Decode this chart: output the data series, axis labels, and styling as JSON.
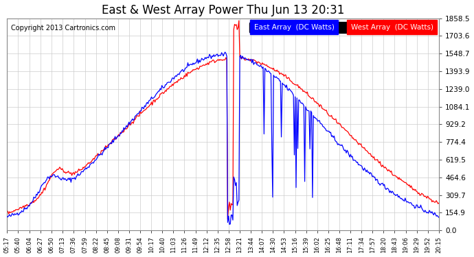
{
  "title": "East & West Array Power Thu Jun 13 20:31",
  "copyright": "Copyright 2013 Cartronics.com",
  "legend_east": "East Array  (DC Watts)",
  "legend_west": "West Array  (DC Watts)",
  "east_color": "#0000ff",
  "west_color": "#ff0000",
  "background_color": "#ffffff",
  "grid_color": "#cccccc",
  "ymin": 0.0,
  "ymax": 1858.5,
  "yticks": [
    0.0,
    154.9,
    309.7,
    464.6,
    619.5,
    774.4,
    929.2,
    1084.1,
    1239.0,
    1393.9,
    1548.7,
    1703.6,
    1858.5
  ],
  "n_points": 500,
  "xtick_labels": [
    "05:17",
    "05:40",
    "06:04",
    "06:27",
    "06:50",
    "07:13",
    "07:36",
    "07:59",
    "08:22",
    "08:45",
    "09:08",
    "09:31",
    "09:54",
    "10:17",
    "10:40",
    "11:03",
    "11:26",
    "11:49",
    "12:12",
    "12:35",
    "12:58",
    "13:21",
    "13:44",
    "14:07",
    "14:30",
    "14:53",
    "15:16",
    "15:39",
    "16:02",
    "16:25",
    "16:48",
    "17:11",
    "17:34",
    "17:57",
    "18:20",
    "18:43",
    "19:06",
    "19:29",
    "19:52",
    "20:15"
  ]
}
